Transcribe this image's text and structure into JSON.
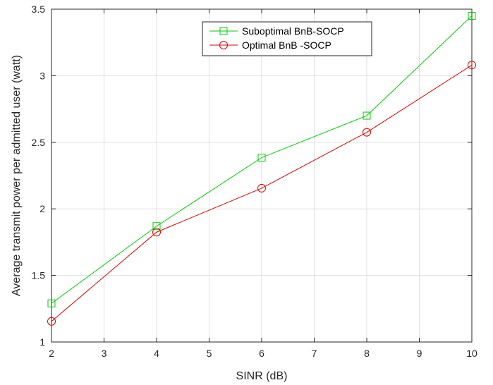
{
  "chart_data": {
    "type": "line",
    "xlabel": "SINR (dB)",
    "ylabel": "Average transmit power per admitted user (watt)",
    "xlim": [
      2,
      10
    ],
    "ylim": [
      1,
      3.5
    ],
    "xticks": [
      2,
      3,
      4,
      5,
      6,
      7,
      8,
      9,
      10
    ],
    "yticks": [
      1,
      1.5,
      2,
      2.5,
      3,
      3.5
    ],
    "x": [
      2,
      4,
      6,
      8,
      10
    ],
    "grid": true,
    "legend_position": "top-center",
    "series": [
      {
        "name": "Suboptimal BnB-SOCP",
        "values": [
          1.29,
          1.87,
          2.385,
          2.7,
          3.45
        ],
        "color": "#00cc00",
        "marker": "square"
      },
      {
        "name": "Optimal BnB -SOCP",
        "values": [
          1.155,
          1.825,
          2.155,
          2.575,
          3.08
        ],
        "color": "#dd0000",
        "marker": "circle"
      }
    ]
  }
}
